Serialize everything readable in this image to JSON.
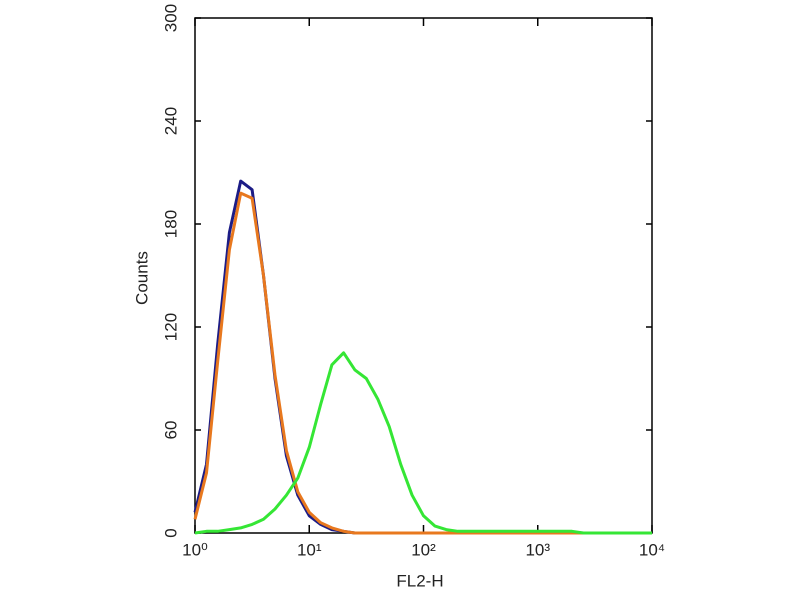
{
  "chart_data": {
    "type": "line",
    "xlog": true,
    "x_label": "FL2-H",
    "y_label": "Counts",
    "x": [
      1,
      1.26,
      1.58,
      2,
      2.51,
      3.16,
      3.98,
      5.01,
      6.31,
      7.94,
      10,
      12.6,
      15.8,
      20,
      25.1,
      31.6,
      39.8,
      50.1,
      63.1,
      79.4,
      100,
      126,
      158,
      200,
      251,
      316,
      398,
      501,
      631,
      794,
      1000,
      1259,
      1585,
      1995,
      2512,
      3162,
      3981,
      5012,
      6310,
      7943,
      10000
    ],
    "series": [
      {
        "color": "#1c1c86",
        "values": [
          12,
          40,
          110,
          175,
          205,
          200,
          150,
          90,
          45,
          22,
          10,
          5,
          2,
          1,
          0,
          0,
          0,
          0,
          0,
          0,
          0,
          0,
          0,
          0,
          0,
          0,
          0,
          0,
          0,
          0,
          0,
          0,
          0,
          0,
          0,
          0,
          0,
          0,
          0,
          0,
          0
        ]
      },
      {
        "color": "#e8781e",
        "values": [
          8,
          35,
          100,
          165,
          198,
          195,
          150,
          92,
          48,
          24,
          12,
          6,
          3,
          1,
          0,
          0,
          0,
          0,
          0,
          0,
          0,
          0,
          0,
          0,
          0,
          0,
          0,
          0,
          0,
          0,
          0,
          0,
          0,
          0,
          0,
          0,
          0,
          0,
          0,
          0,
          0
        ]
      },
      {
        "color": "#35e635",
        "values": [
          0,
          1,
          1,
          2,
          3,
          5,
          8,
          14,
          22,
          32,
          50,
          75,
          98,
          105,
          95,
          90,
          78,
          62,
          40,
          22,
          10,
          4,
          2,
          1,
          1,
          1,
          1,
          1,
          1,
          1,
          1,
          1,
          1,
          1,
          0,
          0,
          0,
          0,
          0,
          0,
          0
        ]
      }
    ],
    "xlim": [
      1,
      10000
    ],
    "xticks": [
      {
        "value": 1,
        "label": "10⁰"
      },
      {
        "value": 10,
        "label": "10¹"
      },
      {
        "value": 100,
        "label": "10²"
      },
      {
        "value": 1000,
        "label": "10³"
      },
      {
        "value": 10000,
        "label": "10⁴"
      }
    ],
    "ylim": [
      0,
      300
    ],
    "yticks": [
      0,
      60,
      120,
      180,
      240,
      300
    ]
  }
}
